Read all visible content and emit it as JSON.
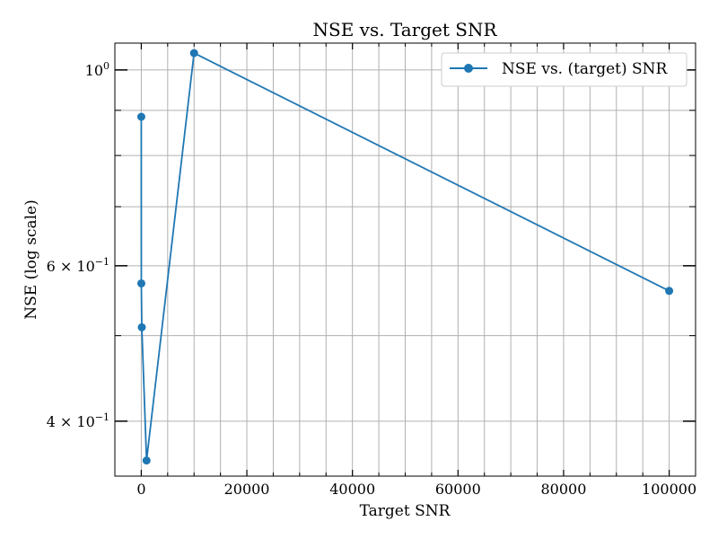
{
  "chart_data": {
    "type": "line",
    "title": "NSE vs. Target SNR",
    "xlabel": "Target SNR",
    "ylabel": "NSE (log scale)",
    "xscale": "linear",
    "yscale": "log",
    "xlim": [
      -5000,
      105000
    ],
    "ylim": [
      0.3466,
      1.0725
    ],
    "xticks": [
      0,
      20000,
      40000,
      60000,
      80000,
      100000
    ],
    "xtick_labels": [
      "0",
      "20000",
      "40000",
      "60000",
      "80000",
      "100000"
    ],
    "x_minor_ticks": [
      5000,
      10000,
      15000,
      25000,
      30000,
      35000,
      45000,
      50000,
      55000,
      65000,
      70000,
      75000,
      85000,
      90000,
      95000
    ],
    "yticks": [
      1.0,
      0.6,
      0.4
    ],
    "ytick_labels": [
      {
        "base": "10",
        "exp": "0"
      },
      {
        "base": "6 × 10",
        "exp": "−1"
      },
      {
        "base": "4 × 10",
        "exp": "−1"
      }
    ],
    "y_minor_ticks": [
      0.9,
      0.8,
      0.7,
      0.5
    ],
    "grid": true,
    "legend_position": "top-right",
    "color": "#1f77b4",
    "series": [
      {
        "name": "NSE vs. (target) SNR",
        "x": [
          1,
          10,
          100,
          1000,
          10000,
          100000
        ],
        "y": [
          0.885,
          0.573,
          0.511,
          0.361,
          1.045,
          0.562
        ]
      }
    ]
  }
}
